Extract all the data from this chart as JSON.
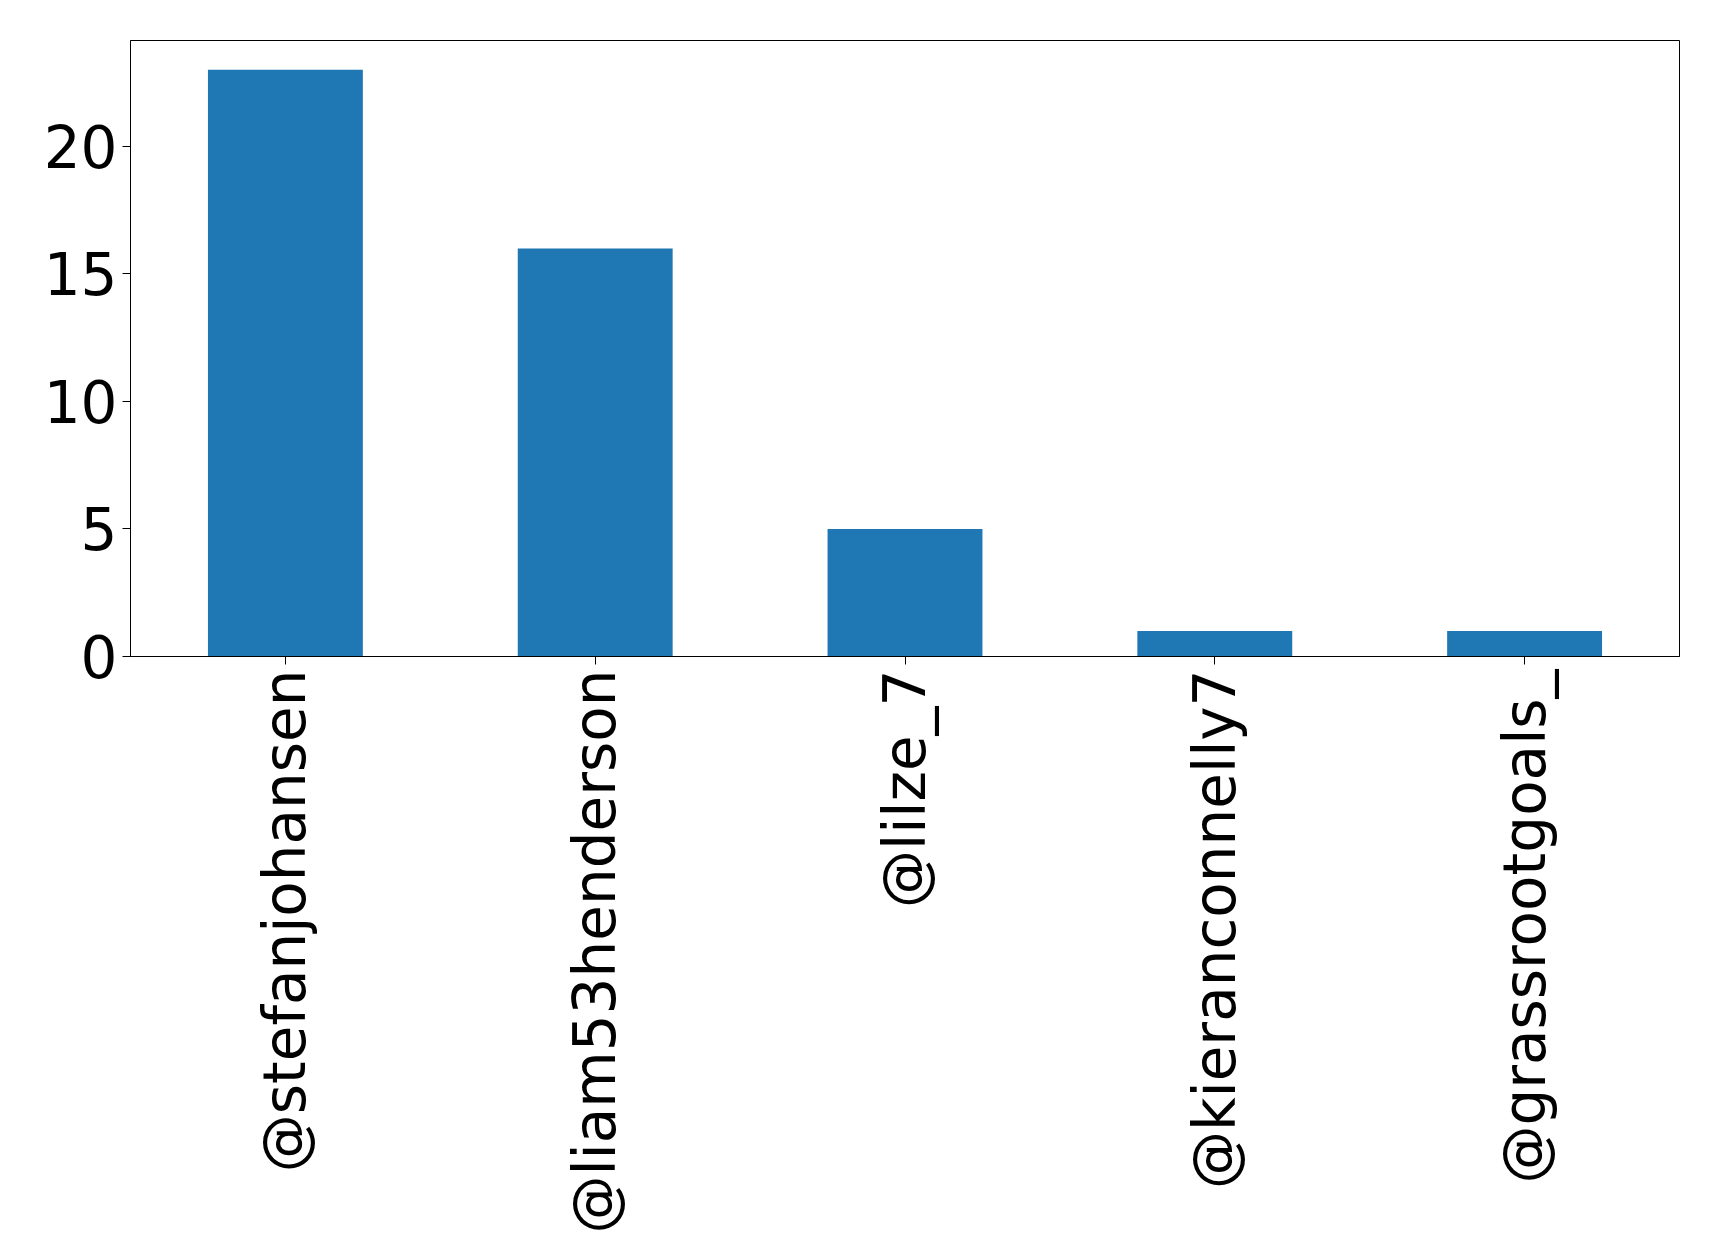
{
  "chart_data": {
    "type": "bar",
    "categories": [
      "@stefanjohansen",
      "@liam53henderson",
      "@lilze_7",
      "@kieranconnelly7",
      "@grassrootgoals_"
    ],
    "values": [
      23,
      16,
      5,
      1,
      1
    ],
    "color": "#1f77b4",
    "ylim": [
      0,
      24.15
    ],
    "yticks": [
      0,
      5,
      10,
      15,
      20
    ],
    "grid": false
  }
}
